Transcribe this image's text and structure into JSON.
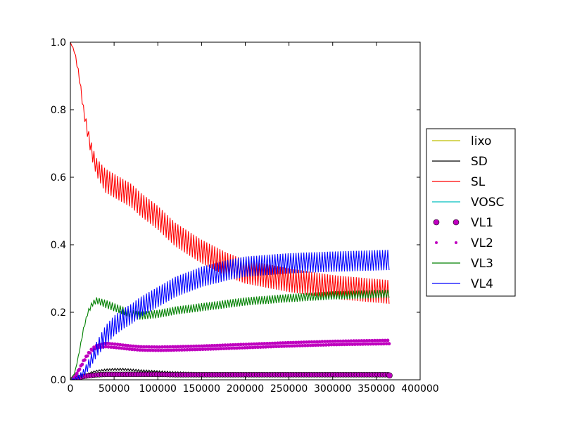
{
  "chart_data": {
    "type": "line",
    "title": "",
    "xlabel": "",
    "ylabel": "",
    "xlim": [
      0,
      400000
    ],
    "ylim": [
      0,
      1.0
    ],
    "grid": false,
    "legend_position": "right-outside",
    "x_ticks": [
      0,
      50000,
      100000,
      150000,
      200000,
      250000,
      300000,
      350000,
      400000
    ],
    "x_tick_labels": [
      "0",
      "50000",
      "100000",
      "150000",
      "200000",
      "250000",
      "300000",
      "350000",
      "400000"
    ],
    "y_ticks": [
      0.0,
      0.2,
      0.4,
      0.6,
      0.8,
      1.0
    ],
    "y_tick_labels": [
      "0.0",
      "0.2",
      "0.4",
      "0.6",
      "0.8",
      "1.0"
    ],
    "x": [
      0,
      5000,
      10000,
      15000,
      20000,
      25000,
      30000,
      40000,
      50000,
      60000,
      70000,
      80000,
      100000,
      120000,
      150000,
      180000,
      200000,
      250000,
      300000,
      365000
    ],
    "series": [
      {
        "name": "lixo",
        "color": "#bfbf00",
        "style": "line",
        "values": [
          0,
          0,
          0,
          0,
          0,
          0,
          0,
          0,
          0,
          0,
          0,
          0,
          0,
          0,
          0,
          0,
          0,
          0,
          0,
          0
        ],
        "oscillation": 0
      },
      {
        "name": "SD",
        "color": "#000000",
        "style": "line",
        "values": [
          0,
          0.002,
          0.006,
          0.012,
          0.018,
          0.023,
          0.026,
          0.029,
          0.031,
          0.031,
          0.029,
          0.027,
          0.024,
          0.021,
          0.018,
          0.016,
          0.015,
          0.014,
          0.013,
          0.013
        ],
        "oscillation": 0.003
      },
      {
        "name": "SL",
        "color": "#ff0000",
        "style": "line",
        "values": [
          1.0,
          0.97,
          0.9,
          0.8,
          0.73,
          0.67,
          0.63,
          0.59,
          0.575,
          0.56,
          0.545,
          0.52,
          0.48,
          0.43,
          0.38,
          0.34,
          0.32,
          0.295,
          0.275,
          0.26
        ],
        "oscillation": 0.035
      },
      {
        "name": "VOSC",
        "color": "#00bfbf",
        "style": "line",
        "values": [
          0,
          0,
          0,
          0,
          0,
          0,
          0,
          0,
          0,
          0,
          0,
          0,
          0,
          0,
          0,
          0,
          0,
          0,
          0,
          0
        ],
        "oscillation": 0
      },
      {
        "name": "VL1",
        "color": "#bf00bf",
        "style": "circle",
        "values": [
          0,
          0.003,
          0.006,
          0.009,
          0.011,
          0.012,
          0.013,
          0.014,
          0.014,
          0.014,
          0.014,
          0.014,
          0.014,
          0.013,
          0.013,
          0.013,
          0.013,
          0.013,
          0.013,
          0.013
        ],
        "oscillation": 0.002
      },
      {
        "name": "VL2",
        "color": "#bf00bf",
        "style": "dots",
        "values": [
          0,
          0.01,
          0.03,
          0.055,
          0.075,
          0.09,
          0.098,
          0.103,
          0.101,
          0.098,
          0.095,
          0.093,
          0.092,
          0.093,
          0.095,
          0.098,
          0.1,
          0.105,
          0.109,
          0.112
        ],
        "oscillation": 0.005
      },
      {
        "name": "VL3",
        "color": "#008000",
        "style": "line",
        "values": [
          0,
          0.02,
          0.08,
          0.15,
          0.2,
          0.225,
          0.235,
          0.225,
          0.215,
          0.205,
          0.195,
          0.19,
          0.195,
          0.205,
          0.215,
          0.225,
          0.232,
          0.242,
          0.25,
          0.255
        ],
        "oscillation": 0.012
      },
      {
        "name": "VL4",
        "color": "#0000ff",
        "style": "line",
        "values": [
          0,
          0.002,
          0.008,
          0.02,
          0.04,
          0.065,
          0.09,
          0.13,
          0.16,
          0.18,
          0.195,
          0.215,
          0.245,
          0.275,
          0.305,
          0.325,
          0.335,
          0.345,
          0.35,
          0.355
        ],
        "oscillation": 0.03
      }
    ]
  }
}
